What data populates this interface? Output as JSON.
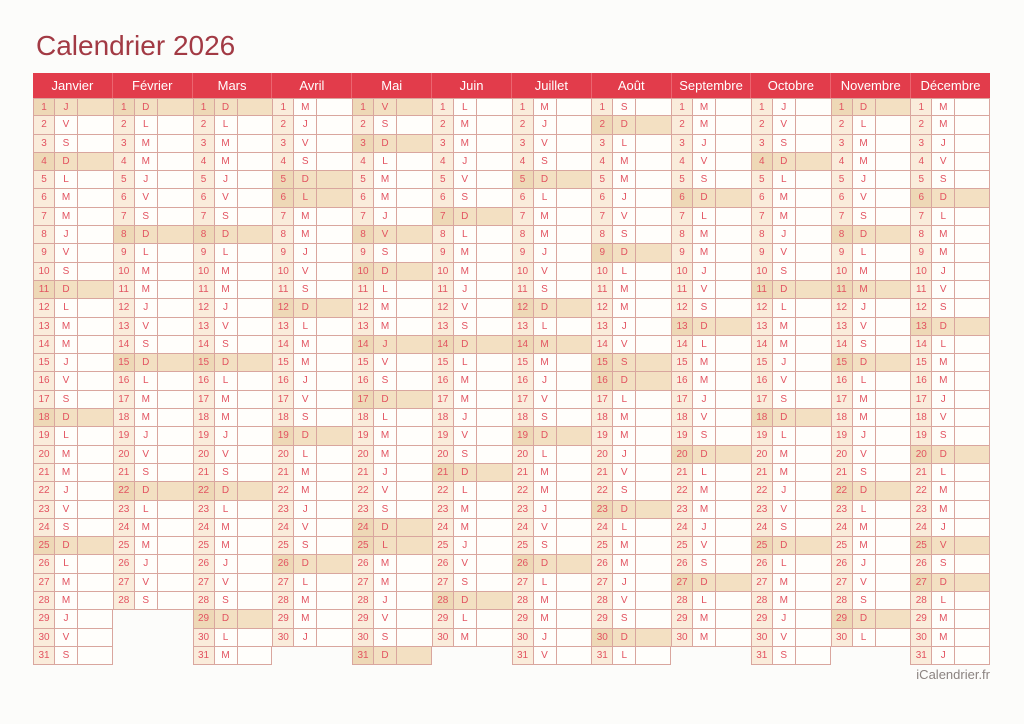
{
  "page": {
    "title": "Calendrier 2026",
    "footer": "iCalendrier.fr"
  },
  "colors": {
    "header_bg": "#e23c4b",
    "header_divider": "#ec6570",
    "title_text": "#a23a44",
    "day_text": "#e25360",
    "number_cell_bg": "#faecdb",
    "highlight_bg": "#f3e0c2",
    "highlight_number_bg": "#eed8b6",
    "cell_border": "#d9a69e",
    "footer_text": "#8b8380"
  },
  "weekday_letters": [
    "L",
    "M",
    "M",
    "J",
    "V",
    "S",
    "D"
  ],
  "months": [
    {
      "name": "Janvier",
      "letters": [
        "J",
        "V",
        "S",
        "D",
        "L",
        "M",
        "M",
        "J",
        "V",
        "S",
        "D",
        "L",
        "M",
        "M",
        "J",
        "V",
        "S",
        "D",
        "L",
        "M",
        "M",
        "J",
        "V",
        "S",
        "D",
        "L",
        "M",
        "M",
        "J",
        "V",
        "S"
      ],
      "highlighted_days": [
        1,
        4,
        11,
        18,
        25
      ]
    },
    {
      "name": "Février",
      "letters": [
        "D",
        "L",
        "M",
        "M",
        "J",
        "V",
        "S",
        "D",
        "L",
        "M",
        "M",
        "J",
        "V",
        "S",
        "D",
        "L",
        "M",
        "M",
        "J",
        "V",
        "S",
        "D",
        "L",
        "M",
        "M",
        "J",
        "V",
        "S"
      ],
      "highlighted_days": [
        1,
        8,
        15,
        22
      ]
    },
    {
      "name": "Mars",
      "letters": [
        "D",
        "L",
        "M",
        "M",
        "J",
        "V",
        "S",
        "D",
        "L",
        "M",
        "M",
        "J",
        "V",
        "S",
        "D",
        "L",
        "M",
        "M",
        "J",
        "V",
        "S",
        "D",
        "L",
        "M",
        "M",
        "J",
        "V",
        "S",
        "D",
        "L",
        "M"
      ],
      "highlighted_days": [
        1,
        8,
        15,
        22,
        29
      ]
    },
    {
      "name": "Avril",
      "letters": [
        "M",
        "J",
        "V",
        "S",
        "D",
        "L",
        "M",
        "M",
        "J",
        "V",
        "S",
        "D",
        "L",
        "M",
        "M",
        "J",
        "V",
        "S",
        "D",
        "L",
        "M",
        "M",
        "J",
        "V",
        "S",
        "D",
        "L",
        "M",
        "M",
        "J"
      ],
      "highlighted_days": [
        5,
        6,
        12,
        19,
        26
      ]
    },
    {
      "name": "Mai",
      "letters": [
        "V",
        "S",
        "D",
        "L",
        "M",
        "M",
        "J",
        "V",
        "S",
        "D",
        "L",
        "M",
        "M",
        "J",
        "V",
        "S",
        "D",
        "L",
        "M",
        "M",
        "J",
        "V",
        "S",
        "D",
        "L",
        "M",
        "M",
        "J",
        "V",
        "S",
        "D"
      ],
      "highlighted_days": [
        1,
        3,
        8,
        10,
        14,
        17,
        24,
        25,
        31
      ]
    },
    {
      "name": "Juin",
      "letters": [
        "L",
        "M",
        "M",
        "J",
        "V",
        "S",
        "D",
        "L",
        "M",
        "M",
        "J",
        "V",
        "S",
        "D",
        "L",
        "M",
        "M",
        "J",
        "V",
        "S",
        "D",
        "L",
        "M",
        "M",
        "J",
        "V",
        "S",
        "D",
        "L",
        "M"
      ],
      "highlighted_days": [
        7,
        14,
        21,
        28
      ]
    },
    {
      "name": "Juillet",
      "letters": [
        "M",
        "J",
        "V",
        "S",
        "D",
        "L",
        "M",
        "M",
        "J",
        "V",
        "S",
        "D",
        "L",
        "M",
        "M",
        "J",
        "V",
        "S",
        "D",
        "L",
        "M",
        "M",
        "J",
        "V",
        "S",
        "D",
        "L",
        "M",
        "M",
        "J",
        "V"
      ],
      "highlighted_days": [
        5,
        12,
        14,
        19,
        26
      ]
    },
    {
      "name": "Août",
      "letters": [
        "S",
        "D",
        "L",
        "M",
        "M",
        "J",
        "V",
        "S",
        "D",
        "L",
        "M",
        "M",
        "J",
        "V",
        "S",
        "D",
        "L",
        "M",
        "M",
        "J",
        "V",
        "S",
        "D",
        "L",
        "M",
        "M",
        "J",
        "V",
        "S",
        "D",
        "L"
      ],
      "highlighted_days": [
        2,
        9,
        15,
        16,
        23,
        30
      ]
    },
    {
      "name": "Septembre",
      "letters": [
        "M",
        "M",
        "J",
        "V",
        "S",
        "D",
        "L",
        "M",
        "M",
        "J",
        "V",
        "S",
        "D",
        "L",
        "M",
        "M",
        "J",
        "V",
        "S",
        "D",
        "L",
        "M",
        "M",
        "J",
        "V",
        "S",
        "D",
        "L",
        "M",
        "M"
      ],
      "highlighted_days": [
        6,
        13,
        20,
        27
      ]
    },
    {
      "name": "Octobre",
      "letters": [
        "J",
        "V",
        "S",
        "D",
        "L",
        "M",
        "M",
        "J",
        "V",
        "S",
        "D",
        "L",
        "M",
        "M",
        "J",
        "V",
        "S",
        "D",
        "L",
        "M",
        "M",
        "J",
        "V",
        "S",
        "D",
        "L",
        "M",
        "M",
        "J",
        "V",
        "S"
      ],
      "highlighted_days": [
        4,
        11,
        18,
        25
      ]
    },
    {
      "name": "Novembre",
      "letters": [
        "D",
        "L",
        "M",
        "M",
        "J",
        "V",
        "S",
        "D",
        "L",
        "M",
        "M",
        "J",
        "V",
        "S",
        "D",
        "L",
        "M",
        "M",
        "J",
        "V",
        "S",
        "D",
        "L",
        "M",
        "M",
        "J",
        "V",
        "S",
        "D",
        "L"
      ],
      "highlighted_days": [
        1,
        8,
        11,
        15,
        22,
        29
      ]
    },
    {
      "name": "Décembre",
      "letters": [
        "M",
        "M",
        "J",
        "V",
        "S",
        "D",
        "L",
        "M",
        "M",
        "J",
        "V",
        "S",
        "D",
        "L",
        "M",
        "M",
        "J",
        "V",
        "S",
        "D",
        "L",
        "M",
        "M",
        "J",
        "V",
        "S",
        "D",
        "L",
        "M",
        "M",
        "J"
      ],
      "highlighted_days": [
        6,
        13,
        20,
        25,
        27
      ]
    }
  ]
}
